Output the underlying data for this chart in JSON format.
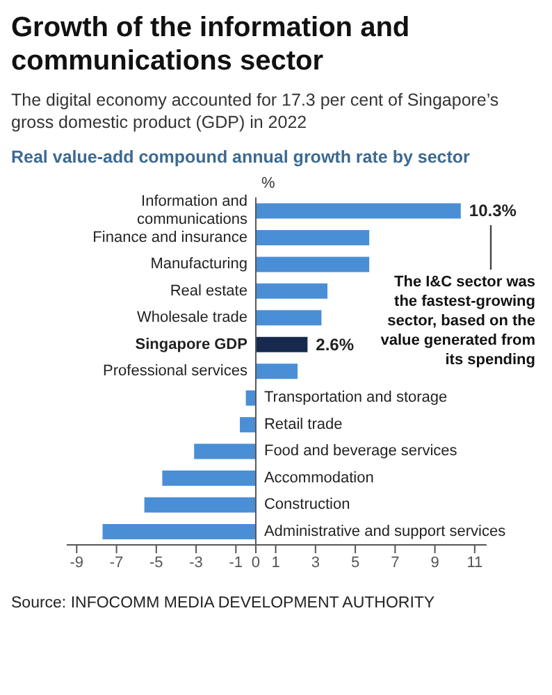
{
  "chart_data": {
    "type": "bar",
    "orientation": "horizontal",
    "title": "Growth of the information and communications sector",
    "subtitle": "The digital economy accounted for 17.3 per cent of Singapore’s gross domestic product (GDP) in 2022",
    "xlabel": "%",
    "categories": [
      "Information and communications",
      "Finance and insurance",
      "Manufacturing",
      "Real estate",
      "Wholesale trade",
      "Singapore GDP",
      "Professional services",
      "Transportation and storage",
      "Retail trade",
      "Food and beverage services",
      "Accommodation",
      "Construction",
      "Administrative and support services"
    ],
    "values": [
      10.3,
      5.7,
      5.7,
      3.6,
      3.3,
      2.6,
      2.1,
      -0.5,
      -0.8,
      -3.1,
      -4.7,
      -5.6,
      -7.7
    ],
    "value_labels": [
      "10.3%",
      null,
      null,
      null,
      null,
      "2.6%",
      null,
      null,
      null,
      null,
      null,
      null,
      null
    ],
    "colors": [
      "#4a8fd6",
      "#4a8fd6",
      "#4a8fd6",
      "#4a8fd6",
      "#4a8fd6",
      "#152a4e",
      "#4a8fd6",
      "#4a8fd6",
      "#4a8fd6",
      "#4a8fd6",
      "#4a8fd6",
      "#4a8fd6",
      "#4a8fd6"
    ],
    "xlim": [
      -9.5,
      11.6
    ],
    "xticks": [
      -9,
      -7,
      -5,
      -3,
      -1,
      0,
      1,
      3,
      5,
      7,
      9,
      11
    ],
    "annotations": [
      "Real value-add compound annual growth rate by sector",
      "The I&C sector was the fastest-growing sector, based on the value generated from its spending",
      "Source: INFOCOMM MEDIA DEVELOPMENT AUTHORITY"
    ],
    "legend": false,
    "grid": false
  }
}
